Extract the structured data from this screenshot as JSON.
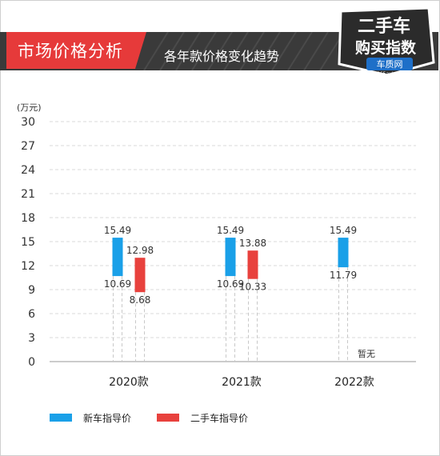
{
  "header": {
    "title": "市场价格分析",
    "subtitle": "各年款价格变化趋势",
    "logo_text": "二手车",
    "logo_text2": "购买指数",
    "logo_brand": "车质网",
    "logo_url": "12365auto.com"
  },
  "colors": {
    "new_car": "#1aa0e8",
    "used_car": "#e8413d",
    "header_band": "#3a3a3a",
    "accent": "#e63a3a"
  },
  "chart_data": {
    "type": "bar",
    "unit": "(万元)",
    "ylim": [
      0,
      30
    ],
    "yticks": [
      "0",
      "3",
      "6",
      "9",
      "12",
      "15",
      "18",
      "21",
      "24",
      "27",
      "30"
    ],
    "categories": [
      "2020款",
      "2021款",
      "2022款"
    ],
    "series": [
      {
        "name": "新车指导价",
        "ranges": [
          [
            10.69,
            15.49
          ],
          [
            10.69,
            15.49
          ],
          [
            11.79,
            15.49
          ]
        ],
        "high_labels": [
          "15.49",
          "15.49",
          "15.49"
        ],
        "low_labels": [
          "10.69",
          "10.69",
          "11.79"
        ]
      },
      {
        "name": "二手车指导价",
        "ranges": [
          [
            8.68,
            12.98
          ],
          [
            10.33,
            13.88
          ],
          null
        ],
        "high_labels": [
          "12.98",
          "13.88",
          ""
        ],
        "low_labels": [
          "8.68",
          "10.33",
          ""
        ]
      }
    ],
    "annotations": [
      "暂无"
    ],
    "grid": true,
    "legend_position": "bottom-left"
  }
}
